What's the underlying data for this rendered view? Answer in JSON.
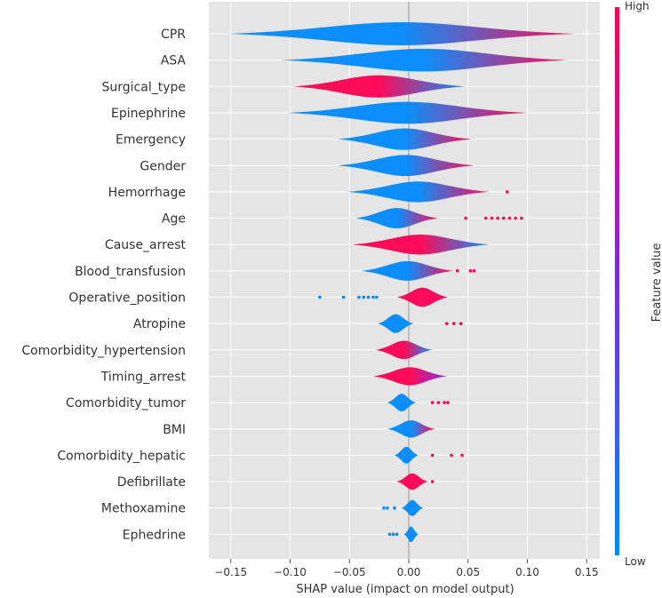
{
  "chart_data": {
    "type": "violin",
    "title": "",
    "xlabel": "SHAP value (impact on model output)",
    "ylabel": "",
    "xlim": [
      -0.17,
      0.155
    ],
    "xticks": [
      -0.15,
      -0.1,
      -0.05,
      0.0,
      0.05,
      0.1,
      0.15
    ],
    "xtick_labels": [
      "−0.15",
      "−0.10",
      "−0.05",
      "0.00",
      "0.05",
      "0.10",
      "0.15"
    ],
    "grid": true,
    "colorbar": {
      "title": "Feature value",
      "high_label": "High",
      "low_label": "Low",
      "low_color": "#008afb",
      "mid_color": "#7c2bd9",
      "high_color": "#ff0052"
    },
    "features": [
      {
        "name": "CPR",
        "min": -0.152,
        "max": 0.14,
        "left_value": "low",
        "right_value": "high",
        "outliers": []
      },
      {
        "name": "ASA",
        "min": -0.108,
        "max": 0.134,
        "left_value": "low",
        "right_value": "high",
        "outliers": []
      },
      {
        "name": "Surgical_type",
        "min": -0.098,
        "max": 0.048,
        "left_value": "high",
        "right_value": "low",
        "outliers": []
      },
      {
        "name": "Epinephrine",
        "min": -0.102,
        "max": 0.1,
        "left_value": "low",
        "right_value": "high",
        "outliers": []
      },
      {
        "name": "Emergency",
        "min": -0.06,
        "max": 0.053,
        "left_value": "low",
        "right_value": "high",
        "outliers": []
      },
      {
        "name": "Gender",
        "min": -0.06,
        "max": 0.055,
        "left_value": "low",
        "right_value": "high",
        "outliers": []
      },
      {
        "name": "Hemorrhage",
        "min": -0.052,
        "max": 0.068,
        "left_value": "low",
        "right_value": "high",
        "outliers": [
          0.083
        ]
      },
      {
        "name": "Age",
        "min": -0.045,
        "max": 0.025,
        "left_value": "low",
        "right_value": "high",
        "outliers": [
          0.048,
          0.065,
          0.07,
          0.075,
          0.08,
          0.085,
          0.09,
          0.095
        ]
      },
      {
        "name": "Cause_arrest",
        "min": -0.048,
        "max": 0.068,
        "left_value": "high",
        "right_value": "low",
        "outliers": []
      },
      {
        "name": "Blood_transfusion",
        "min": -0.04,
        "max": 0.038,
        "left_value": "low",
        "right_value": "high",
        "outliers": [
          0.041,
          0.052,
          0.055
        ]
      },
      {
        "name": "Operative_position",
        "min": -0.01,
        "max": 0.033,
        "left_value": "high",
        "right_value": "high",
        "outliers": [
          -0.075,
          -0.055,
          -0.042,
          -0.038,
          -0.034,
          -0.03,
          -0.027
        ]
      },
      {
        "name": "Atropine",
        "min": -0.026,
        "max": 0.004,
        "left_value": "low",
        "right_value": "low",
        "outliers": [
          0.032,
          0.038,
          0.044
        ]
      },
      {
        "name": "Comorbidity_hypertension",
        "min": -0.028,
        "max": 0.02,
        "left_value": "high",
        "right_value": "low",
        "outliers": []
      },
      {
        "name": "Timing_arrest",
        "min": -0.03,
        "max": 0.032,
        "left_value": "high",
        "right_value": "mid",
        "outliers": []
      },
      {
        "name": "Comorbidity_tumor",
        "min": -0.018,
        "max": 0.006,
        "left_value": "low",
        "right_value": "low",
        "outliers": [
          0.02,
          0.025,
          0.03,
          0.033
        ]
      },
      {
        "name": "BMI",
        "min": -0.018,
        "max": 0.022,
        "left_value": "low",
        "right_value": "high",
        "outliers": []
      },
      {
        "name": "Comorbidity_hepatic",
        "min": -0.012,
        "max": 0.008,
        "left_value": "low",
        "right_value": "low",
        "outliers": [
          0.02,
          0.036,
          0.045
        ]
      },
      {
        "name": "Defibrillate",
        "min": -0.01,
        "max": 0.016,
        "left_value": "high",
        "right_value": "high",
        "outliers": [
          0.02
        ]
      },
      {
        "name": "Methoxamine",
        "min": -0.006,
        "max": 0.012,
        "left_value": "low",
        "right_value": "low",
        "outliers": [
          -0.021,
          -0.018,
          -0.012
        ]
      },
      {
        "name": "Ephedrine",
        "min": -0.004,
        "max": 0.008,
        "left_value": "low",
        "right_value": "low",
        "outliers": [
          -0.016,
          -0.013,
          -0.01
        ]
      }
    ]
  }
}
